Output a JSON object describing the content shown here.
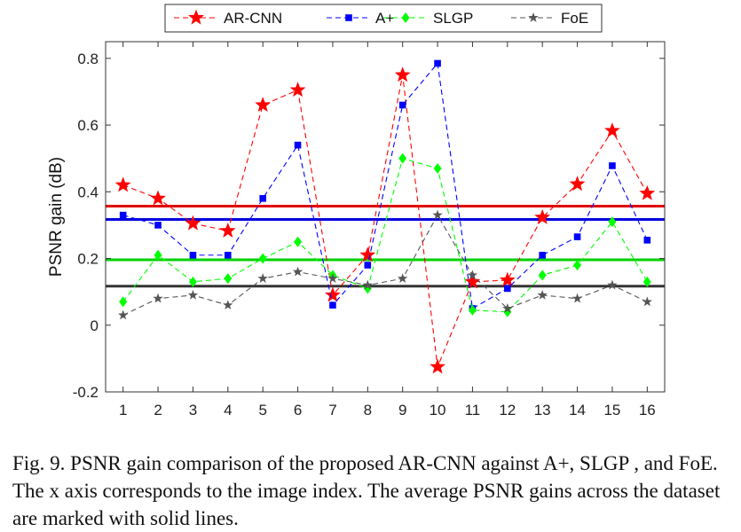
{
  "chart_data": {
    "type": "line",
    "title": "",
    "xlabel": "",
    "ylabel": "PSNR gain (dB)",
    "x": [
      1,
      2,
      3,
      4,
      5,
      6,
      7,
      8,
      9,
      10,
      11,
      12,
      13,
      14,
      15,
      16
    ],
    "x_tick_labels": [
      "1",
      "2",
      "3",
      "4",
      "5",
      "6",
      "7",
      "8",
      "9",
      "10",
      "11",
      "12",
      "13",
      "14",
      "15",
      "16"
    ],
    "xlim": [
      0.5,
      16.5
    ],
    "ylim": [
      -0.2,
      0.85
    ],
    "y_ticks": [
      -0.2,
      0,
      0.2,
      0.4,
      0.6,
      0.8
    ],
    "y_tick_labels": [
      "-0.2",
      "0",
      "0.2",
      "0.4",
      "0.6",
      "0.8"
    ],
    "grid": false,
    "legend": "top",
    "series": [
      {
        "name": "AR-CNN",
        "color": "#ff0000",
        "marker": "star",
        "values": [
          0.42,
          0.38,
          0.305,
          0.283,
          0.66,
          0.705,
          0.09,
          0.21,
          0.75,
          -0.125,
          0.13,
          0.135,
          0.323,
          0.423,
          0.583,
          0.395
        ]
      },
      {
        "name": "A+",
        "color": "#0000ff",
        "marker": "square",
        "values": [
          0.33,
          0.3,
          0.21,
          0.21,
          0.38,
          0.54,
          0.06,
          0.18,
          0.66,
          0.785,
          0.05,
          0.11,
          0.21,
          0.265,
          0.478,
          0.255
        ]
      },
      {
        "name": "SLGP",
        "color": "#00ff00",
        "marker": "diamond",
        "values": [
          0.07,
          0.21,
          0.13,
          0.14,
          0.2,
          0.25,
          0.15,
          0.11,
          0.5,
          0.47,
          0.045,
          0.04,
          0.15,
          0.18,
          0.31,
          0.13
        ]
      },
      {
        "name": "FoE",
        "color": "#555555",
        "marker": "asterisk",
        "values": [
          0.03,
          0.08,
          0.09,
          0.06,
          0.14,
          0.16,
          0.14,
          0.12,
          0.14,
          0.33,
          0.15,
          0.05,
          0.09,
          0.08,
          0.12,
          0.07
        ]
      }
    ],
    "averages": [
      {
        "series": "AR-CNN",
        "value": 0.357,
        "color": "#e00000"
      },
      {
        "series": "A+",
        "value": 0.317,
        "color": "#0000e0"
      },
      {
        "series": "SLGP",
        "value": 0.196,
        "color": "#00d000"
      },
      {
        "series": "FoE",
        "value": 0.117,
        "color": "#333333"
      }
    ]
  },
  "caption": "Fig. 9.  PSNR gain comparison of the proposed AR-CNN against A+, SLGP , and FoE. The x axis corresponds to the image index. The average PSNR gains across the dataset are marked with solid lines."
}
